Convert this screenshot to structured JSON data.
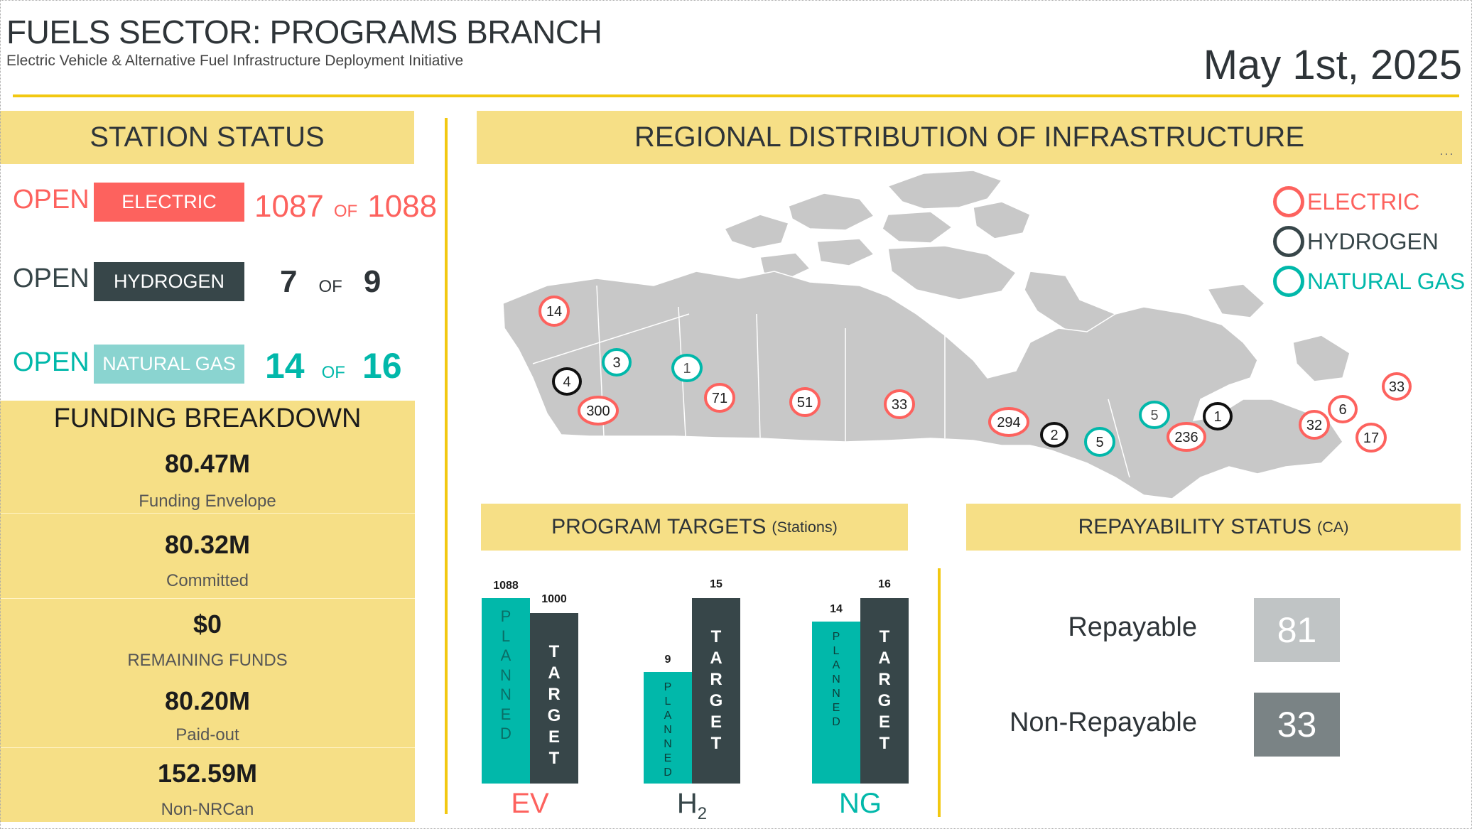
{
  "header": {
    "title": "FUELS SECTOR: PROGRAMS BRANCH",
    "subtitle": "Electric Vehicle & Alternative Fuel Infrastructure Deployment Initiative",
    "date": "May 1st, 2025"
  },
  "colors": {
    "electric": "#fd625e",
    "hydrogen": "#374649",
    "natural_gas": "#01b8aa",
    "natural_gas_tag": "#8ad4d0",
    "accent_yellow": "#f2c811",
    "panel_yellow": "#f6df86"
  },
  "station_status": {
    "title": "STATION STATUS",
    "rows": [
      {
        "state": "OPEN",
        "fuel": "ELECTRIC",
        "open": "1087",
        "of": "OF",
        "total": "1088"
      },
      {
        "state": "OPEN",
        "fuel": "HYDROGEN",
        "open": "7",
        "of": "OF",
        "total": "9"
      },
      {
        "state": "OPEN",
        "fuel": "NATURAL GAS",
        "open": "14",
        "of": "OF",
        "total": "16"
      }
    ]
  },
  "funding": {
    "title": "FUNDING BREAKDOWN",
    "items": [
      {
        "value": "80.47M",
        "label": "Funding Envelope"
      },
      {
        "value": "80.32M",
        "label": "Committed"
      },
      {
        "value": "$0",
        "label": "REMAINING FUNDS"
      },
      {
        "value": "80.20M",
        "label": "Paid-out"
      },
      {
        "value": "152.59M",
        "label": "Non-NRCan"
      }
    ]
  },
  "map": {
    "title": "REGIONAL DISTRIBUTION OF INFRASTRUCTURE",
    "more_icon": "ellipsis-icon",
    "legend": [
      {
        "label": "ELECTRIC",
        "key": "electric"
      },
      {
        "label": "HYDROGEN",
        "key": "hydrogen"
      },
      {
        "label": "NATURAL GAS",
        "key": "natural_gas"
      }
    ],
    "markers": [
      {
        "value": "14",
        "type": "electric"
      },
      {
        "value": "3",
        "type": "natural_gas"
      },
      {
        "value": "1",
        "type": "natural_gas"
      },
      {
        "value": "4",
        "type": "hydrogen"
      },
      {
        "value": "300",
        "type": "electric"
      },
      {
        "value": "71",
        "type": "electric"
      },
      {
        "value": "51",
        "type": "electric"
      },
      {
        "value": "33",
        "type": "electric"
      },
      {
        "value": "294",
        "type": "electric"
      },
      {
        "value": "2",
        "type": "hydrogen"
      },
      {
        "value": "5",
        "type": "natural_gas"
      },
      {
        "value": "5",
        "type": "natural_gas"
      },
      {
        "value": "1",
        "type": "hydrogen"
      },
      {
        "value": "236",
        "type": "electric"
      },
      {
        "value": "6",
        "type": "electric"
      },
      {
        "value": "32",
        "type": "electric"
      },
      {
        "value": "17",
        "type": "electric"
      },
      {
        "value": "33",
        "type": "electric"
      }
    ]
  },
  "program_targets": {
    "title": "PROGRAM TARGETS",
    "title_suffix": "(Stations)",
    "chart_data": {
      "type": "bar",
      "categories": [
        "EV",
        "H2",
        "NG"
      ],
      "series": [
        {
          "name": "PLANNED",
          "values": [
            1088,
            9,
            14
          ]
        },
        {
          "name": "TARGET",
          "values": [
            1000,
            15,
            16
          ]
        }
      ],
      "category_labels": [
        "EV",
        "H",
        "NG"
      ],
      "category_subscripts": [
        "",
        "2",
        ""
      ],
      "value_labels": {
        "planned": [
          "1088",
          "9",
          "14"
        ],
        "target": [
          "1000",
          "15",
          "16"
        ]
      },
      "planned_text": "PLANNED",
      "target_text": "TARGET"
    }
  },
  "repayability": {
    "title": "REPAYABILITY STATUS",
    "title_suffix": "(CA)",
    "items": [
      {
        "label": "Repayable",
        "value": "81",
        "color": "#c0c4c5"
      },
      {
        "label": "Non-Repayable",
        "value": "33",
        "color": "#7a8385"
      }
    ]
  }
}
